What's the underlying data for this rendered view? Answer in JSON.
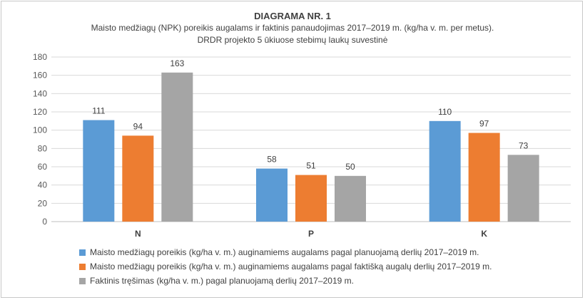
{
  "chart_data": {
    "type": "bar",
    "title": "DIAGRAMA NR. 1",
    "subtitle_line1": "Maisto medžiagų (NPK) poreikis augalams ir faktinis panaudojimas 2017–2019 m. (kg/ha v. m. per metus).",
    "subtitle_line2": "DRDR projekto 5 ūkiuose stebimų laukų suvestinė",
    "categories": [
      "N",
      "P",
      "K"
    ],
    "ylim": [
      0,
      180
    ],
    "yticks": [
      0,
      20,
      40,
      60,
      80,
      100,
      120,
      140,
      160,
      180
    ],
    "grid": true,
    "legend_position": "bottom",
    "series": [
      {
        "name": "Maisto medžiagų poreikis (kg/ha v. m.) auginamiems augalams pagal planuojamą derlių  2017–2019 m.",
        "values": [
          111,
          58,
          110
        ],
        "color": "#5b9bd5"
      },
      {
        "name": "Maisto medžiagų poreikis (kg/ha v. m.) auginamiems augalams pagal faktišką augalų derlių  2017–2019 m.",
        "values": [
          94,
          51,
          97
        ],
        "color": "#ed7d31"
      },
      {
        "name": "Faktinis tręšimas (kg/ha v. m.) pagal planuojamą derlių 2017–2019 m.",
        "values": [
          163,
          50,
          73
        ],
        "color": "#a5a5a5"
      }
    ]
  }
}
